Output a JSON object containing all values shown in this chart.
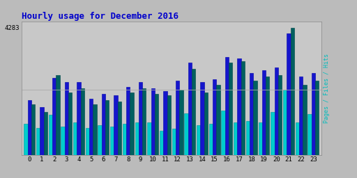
{
  "title": "Hourly usage for December 2016",
  "title_color": "#0000cc",
  "title_fontsize": 9,
  "hours": [
    0,
    1,
    2,
    3,
    4,
    5,
    6,
    7,
    8,
    9,
    10,
    11,
    12,
    13,
    14,
    15,
    16,
    17,
    18,
    19,
    20,
    21,
    22,
    23
  ],
  "pages": [
    1700,
    1450,
    2700,
    2100,
    2250,
    1700,
    1850,
    1800,
    2100,
    2250,
    2050,
    2000,
    2200,
    2900,
    2100,
    2350,
    3100,
    3150,
    2500,
    2650,
    2700,
    4283,
    2350,
    2500
  ],
  "files": [
    1850,
    1600,
    2600,
    2450,
    2450,
    1900,
    2050,
    2000,
    2300,
    2450,
    2250,
    2150,
    2500,
    3100,
    2450,
    2550,
    3300,
    3250,
    2750,
    2850,
    2950,
    4100,
    2650,
    2750
  ],
  "hits": [
    1050,
    900,
    1350,
    950,
    1100,
    900,
    1000,
    950,
    1050,
    1100,
    1100,
    820,
    880,
    1400,
    1000,
    1050,
    1500,
    1100,
    1150,
    1100,
    1450,
    2200,
    1100,
    1380
  ],
  "color_pages": "#006060",
  "color_files": "#1515cc",
  "color_hits": "#00cccc",
  "bg_plot": "#c8c8c8",
  "bg_fig": "#bbbbbb",
  "ylabel": "Pages / Files / Hits",
  "ylabel_color": "#00bbbb",
  "ylim": [
    0,
    4500
  ],
  "ytick_value": 4283,
  "ytick_label": "4283",
  "bar_width": 0.3
}
